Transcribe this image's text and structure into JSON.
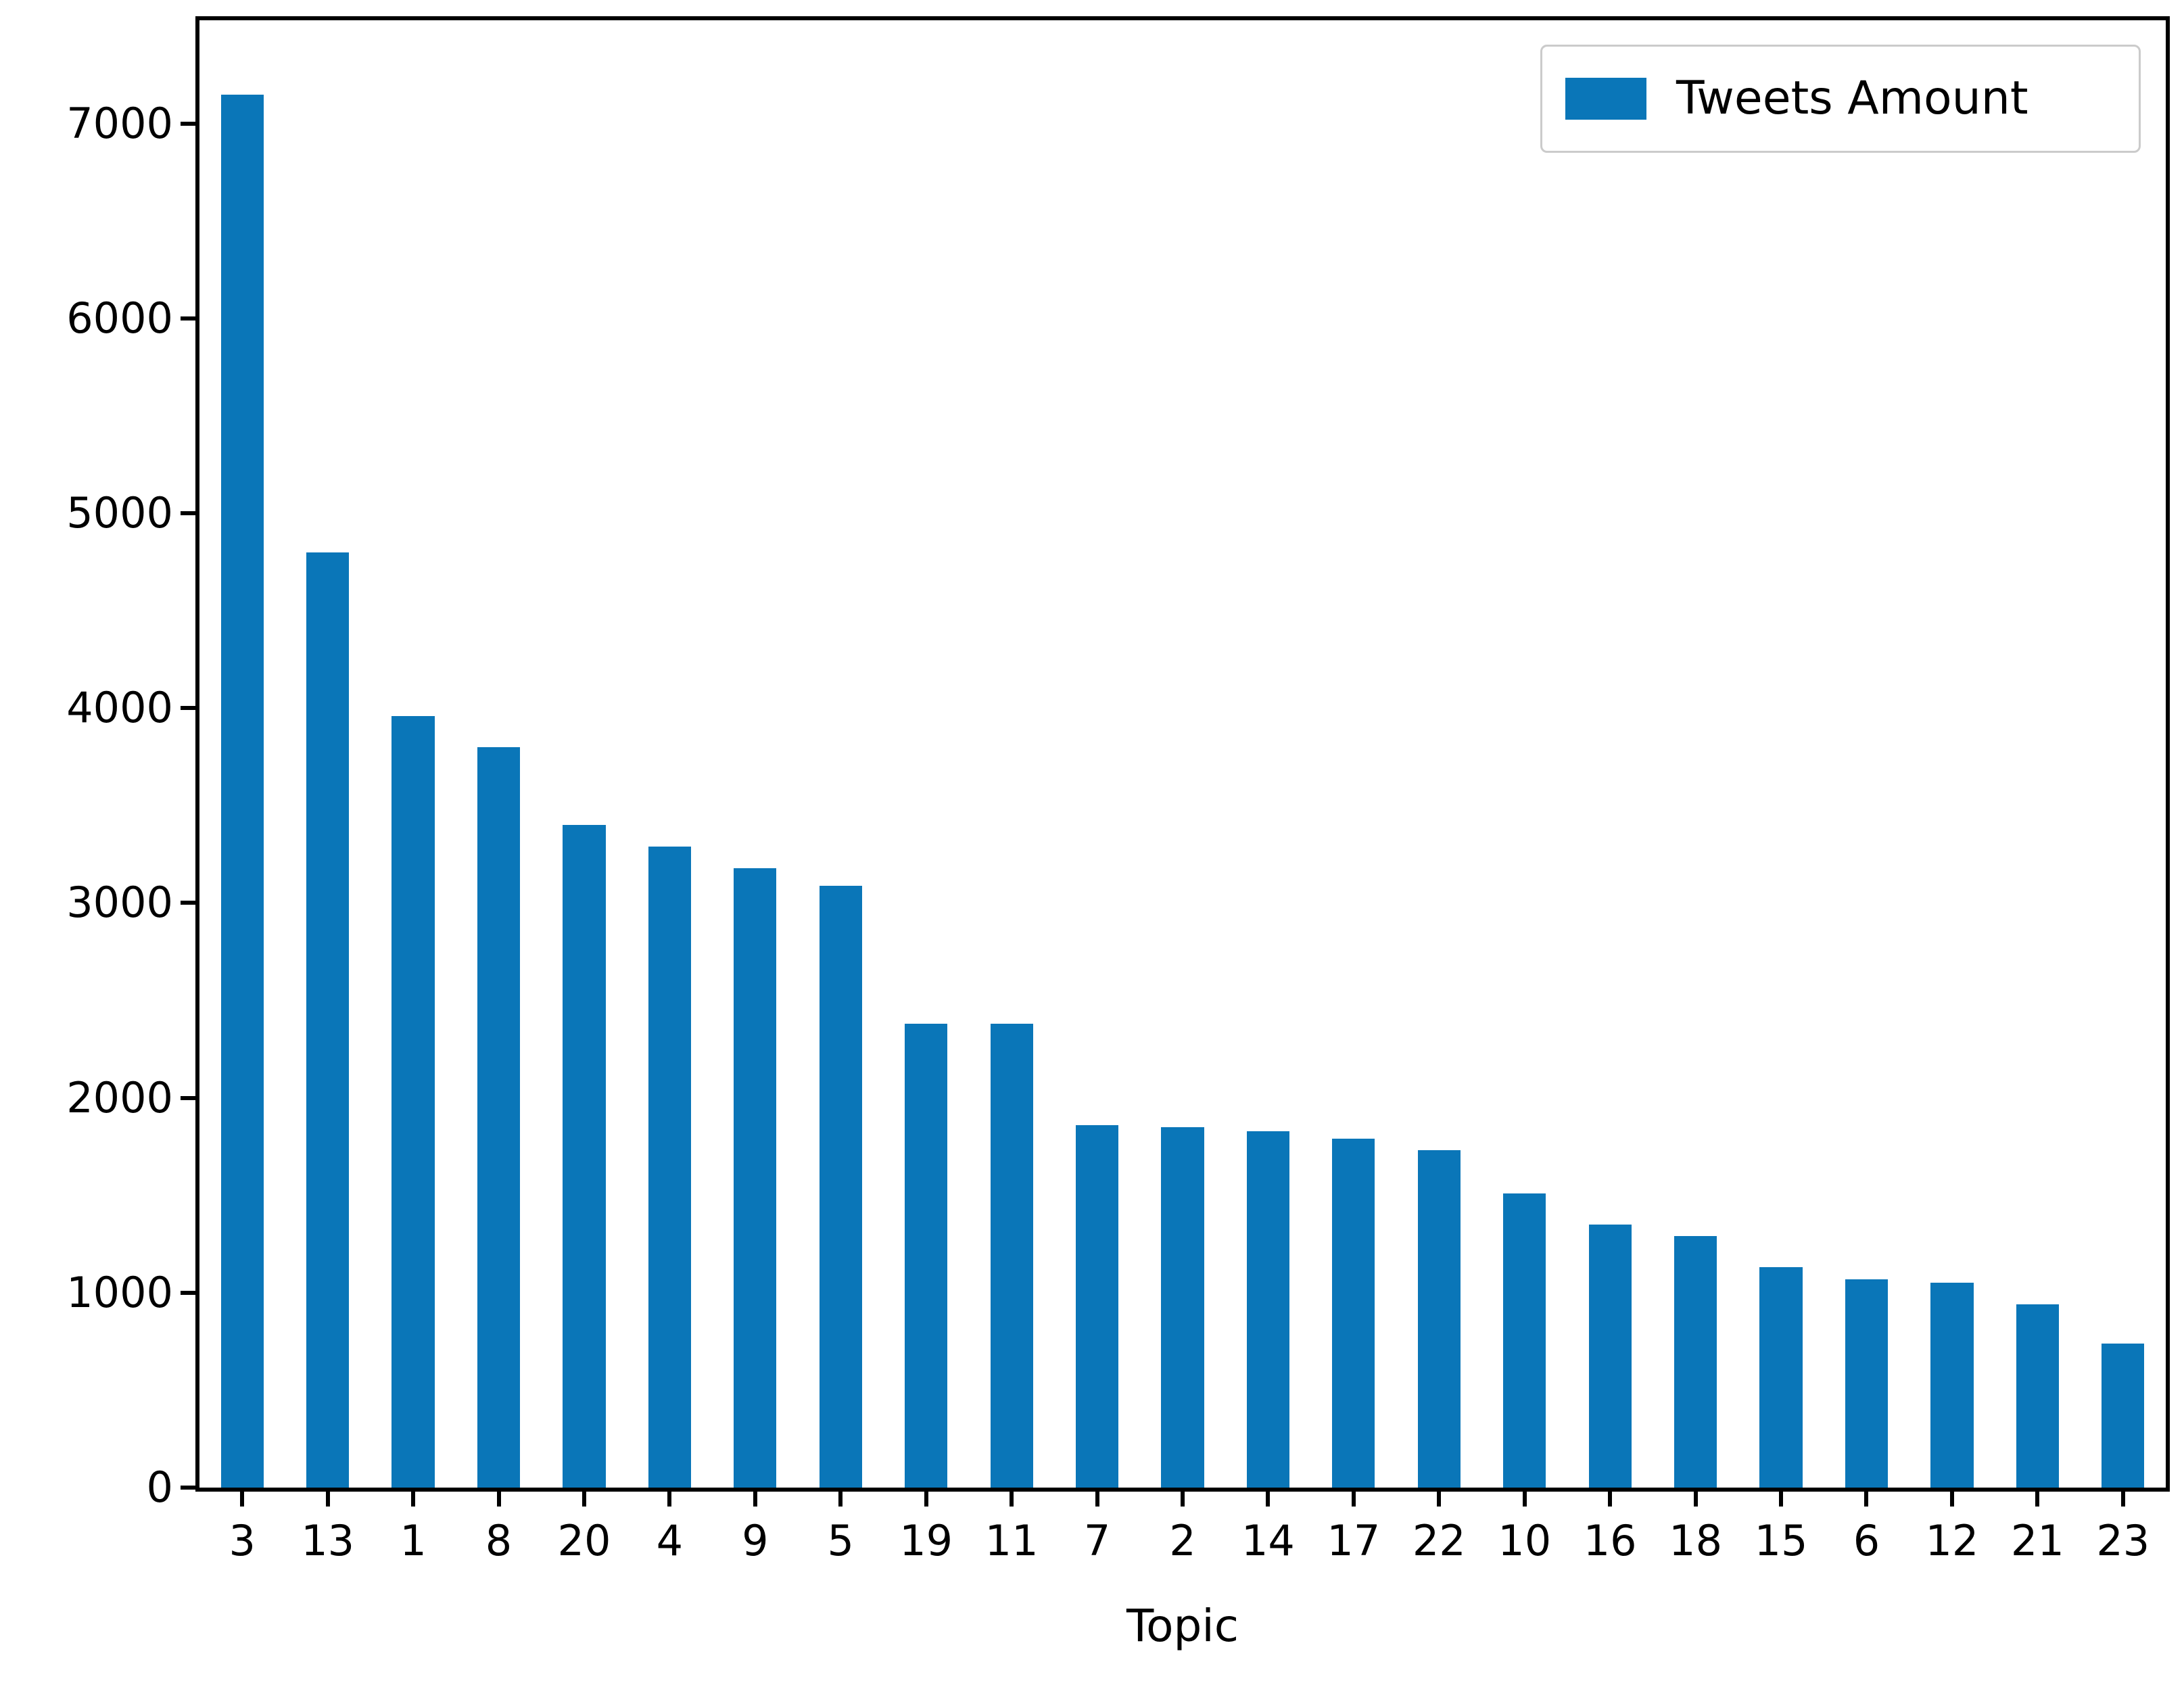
{
  "chart_data": {
    "type": "bar",
    "title": "",
    "xlabel": "Topic",
    "ylabel": "",
    "categories": [
      "3",
      "13",
      "1",
      "8",
      "20",
      "4",
      "9",
      "5",
      "19",
      "11",
      "7",
      "2",
      "14",
      "17",
      "22",
      "10",
      "16",
      "18",
      "15",
      "6",
      "12",
      "21",
      "23"
    ],
    "values": [
      7150,
      4800,
      3960,
      3800,
      3400,
      3290,
      3180,
      3090,
      2380,
      2380,
      1860,
      1850,
      1830,
      1790,
      1730,
      1510,
      1350,
      1290,
      1130,
      1070,
      1050,
      940,
      740
    ],
    "series": [
      {
        "name": "Tweets Amount",
        "values": [
          7150,
          4800,
          3960,
          3800,
          3400,
          3290,
          3180,
          3090,
          2380,
          2380,
          1860,
          1850,
          1830,
          1790,
          1730,
          1510,
          1350,
          1290,
          1130,
          1070,
          1050,
          940,
          740
        ]
      }
    ],
    "yticks": [
      0,
      1000,
      2000,
      3000,
      4000,
      5000,
      6000,
      7000
    ],
    "ylim": [
      0,
      7530
    ],
    "grid": false,
    "legend": {
      "label": "Tweets Amount",
      "position": "upper right"
    },
    "colors": {
      "bar": "#0a76b8",
      "spine": "#000000",
      "legend_border": "#cbcbcb",
      "background": "#ffffff"
    }
  }
}
